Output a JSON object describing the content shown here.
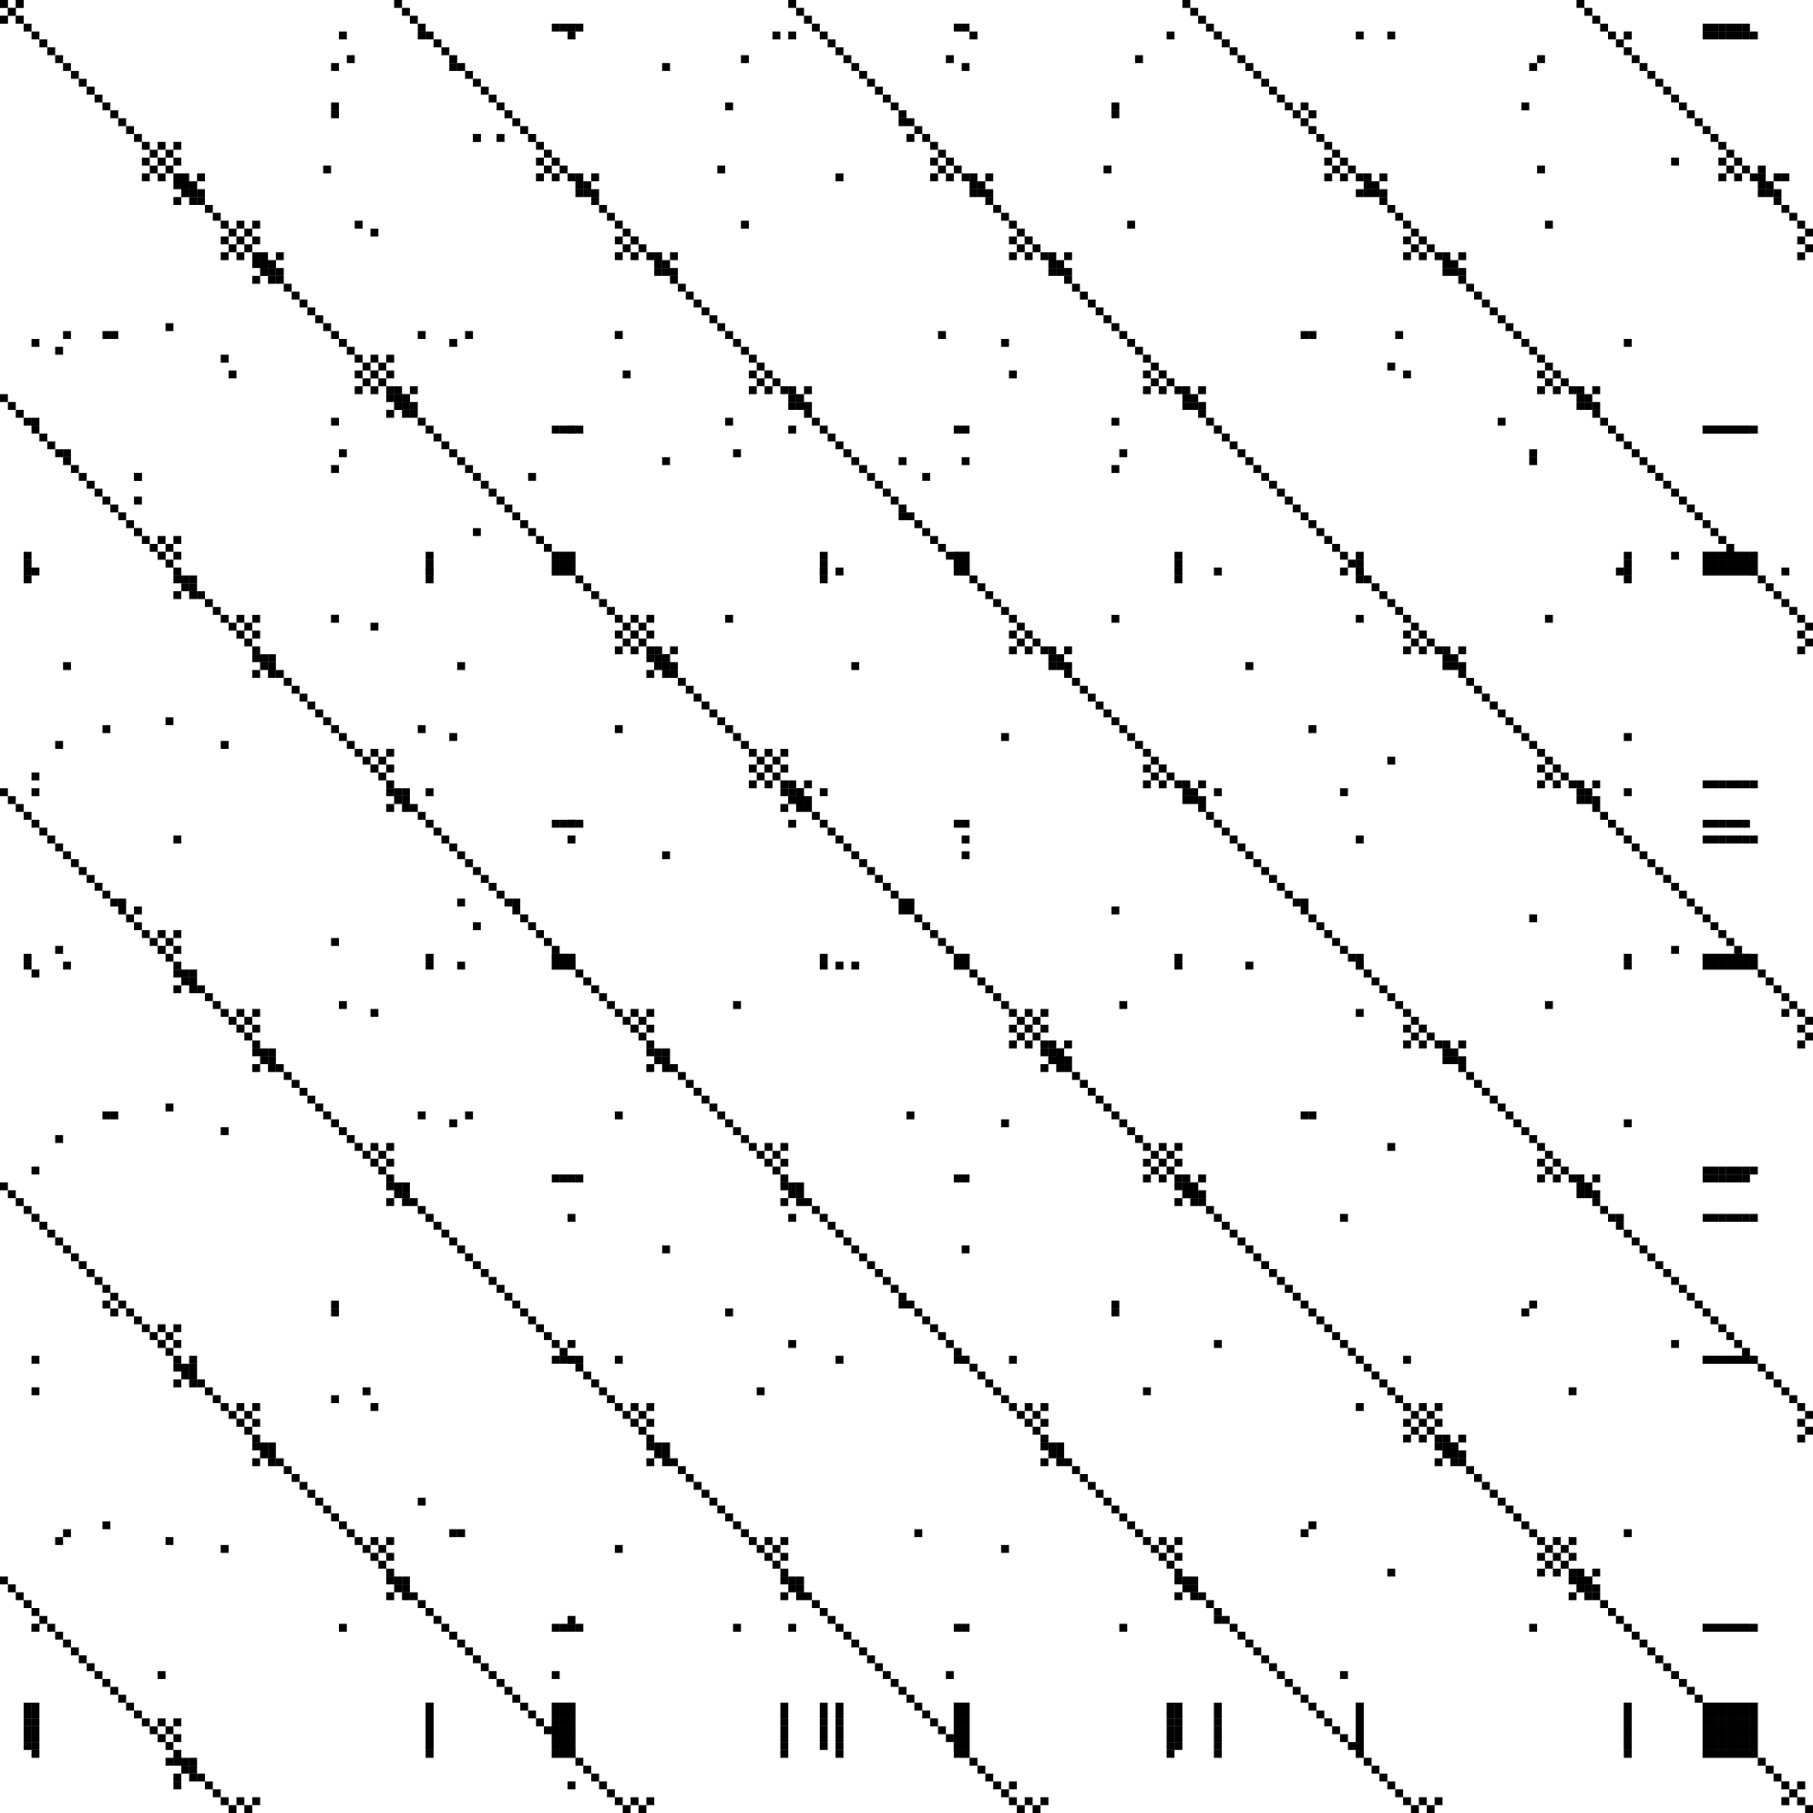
{
  "figure": {
    "kind": "sparsity pattern",
    "background_color": "#ffffff",
    "nonzero_color": "#000000",
    "axes_labels_shown": false,
    "ticks_shown": false
  },
  "matrix": {
    "structure": "symmetric",
    "dominant_feature": "main diagonal",
    "repeating_blocks": 4,
    "dense_blocks_along_diagonal_edges": true
  }
}
